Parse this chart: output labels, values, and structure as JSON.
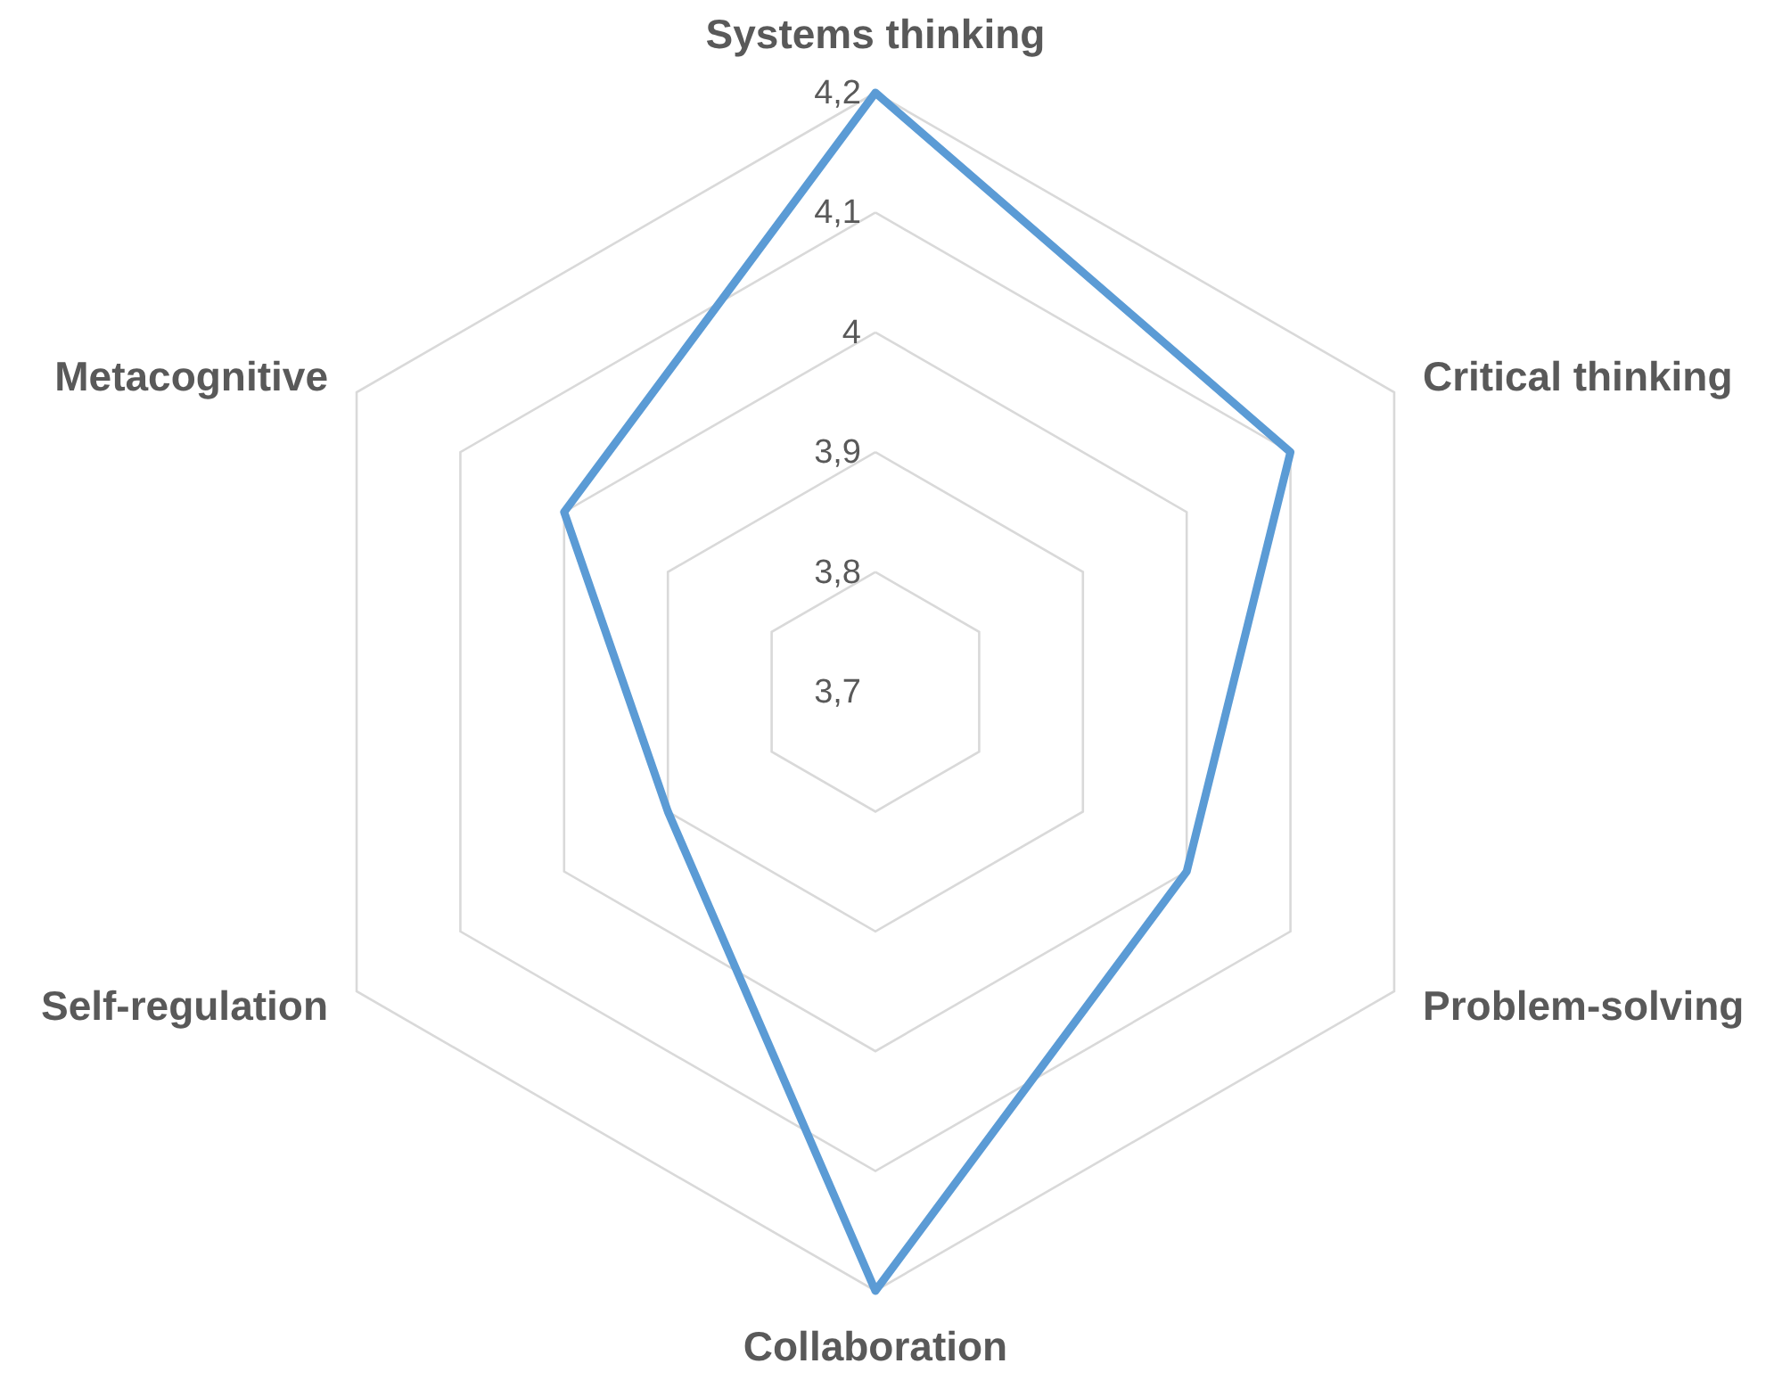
{
  "chart_data": {
    "type": "radar",
    "categories": [
      "Systems thinking",
      "Critical thinking",
      "Problem-solving",
      "Collaboration",
      "Self-regulation",
      "Metacognitive"
    ],
    "series": [
      {
        "color": "#5b9bd5",
        "values": [
          4.2,
          4.1,
          4.0,
          4.2,
          3.9,
          4.0
        ]
      }
    ],
    "ylim": [
      3.7,
      4.2
    ],
    "yticks": [
      {
        "value": 3.7,
        "label": "3,7"
      },
      {
        "value": 3.8,
        "label": "3,8"
      },
      {
        "value": 3.9,
        "label": "3,9"
      },
      4,
      {
        "value": 4.1,
        "label": "4,1"
      },
      {
        "value": 4.2,
        "label": "4,2"
      }
    ],
    "grid": true
  }
}
